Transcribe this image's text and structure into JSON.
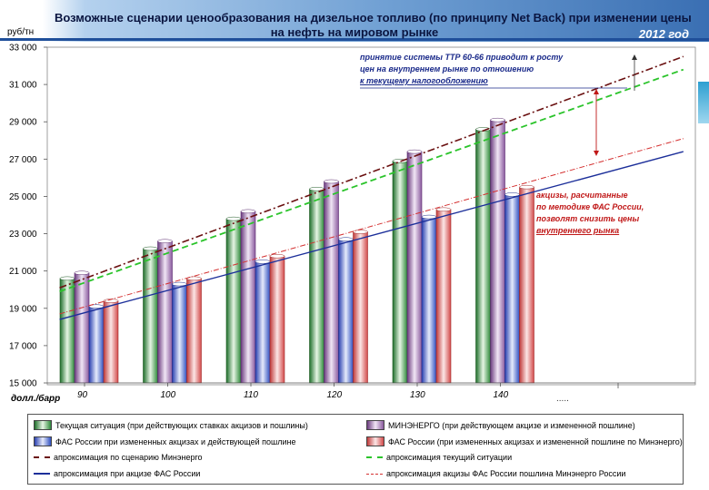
{
  "header": {
    "title_line1": "Возможные сценарии ценообразования на дизельное топливо (по принципу Net Back) при изменении цены",
    "title_line2": "на нефть на мировом рынке",
    "year": "2012 год"
  },
  "annotations": {
    "top_line1": "принятие системы ТТР 60-66 приводит к росту",
    "top_line2": "цен на внутреннем рынке по отношению",
    "top_line3": "к текущему налогообложению",
    "red_line1": "акцизы, расчитанные",
    "red_line2": "по методике ФАС России,",
    "red_line3": "позволят снизить цены",
    "red_line4": "внутреннего рынка"
  },
  "footer": {
    "dots": "....."
  },
  "colors": {
    "green": "#2e8a3a",
    "purple": "#8a5a9e",
    "blue": "#3050c0",
    "red": "#d24a4a",
    "darkred": "#6a1010",
    "dashgreen": "#2bc42b",
    "navy": "#1c2f9a",
    "dashred": "#d43030"
  },
  "chart_data": {
    "type": "bar",
    "ylabel": "руб/тн",
    "xlabel": "долл./барр",
    "ylim": [
      15000,
      33000
    ],
    "yticks": [
      "15 000",
      "17 000",
      "19 000",
      "21 000",
      "23 000",
      "25 000",
      "27 000",
      "29 000",
      "31 000",
      "33 000"
    ],
    "categories": [
      "90",
      "100",
      "110",
      "120",
      "130",
      "140"
    ],
    "series": [
      {
        "name": "Текущая ситуация (при действующих ставках акцизов и пошлины)",
        "values": [
          20600,
          22200,
          23800,
          25400,
          26900,
          28600
        ]
      },
      {
        "name": "МИНЭНЕРГО (при действующем акцизе и измененной пошлине)",
        "values": [
          20900,
          22600,
          24200,
          25800,
          27400,
          29100
        ]
      },
      {
        "name": "ФАС России при измененных акцизах и действующей пошлине",
        "values": [
          19100,
          20300,
          21500,
          22700,
          23900,
          25100
        ]
      },
      {
        "name": "ФАС России (при измененных акцизах и измененной пошлине по Минэнерго)",
        "values": [
          19400,
          20600,
          21800,
          23100,
          24300,
          25500
        ]
      }
    ],
    "trendlines": [
      {
        "name": "апроксимация по сценарию Минэнерго",
        "style": "dashdot-darkred",
        "x": [
          87,
          162
        ],
        "y": [
          20100,
          32500
        ]
      },
      {
        "name": "апроксимация текущий ситуации",
        "style": "dash-green",
        "x": [
          87,
          162
        ],
        "y": [
          19900,
          31800
        ]
      },
      {
        "name": "апроксимация при акцизе ФАС России",
        "style": "solid-navy",
        "x": [
          87,
          162
        ],
        "y": [
          18400,
          27400
        ]
      },
      {
        "name": "апроксимация акцизы ФАс России пошлина Минэнерго России",
        "style": "dashdot-red",
        "x": [
          87,
          162
        ],
        "y": [
          18700,
          28100
        ]
      }
    ]
  }
}
